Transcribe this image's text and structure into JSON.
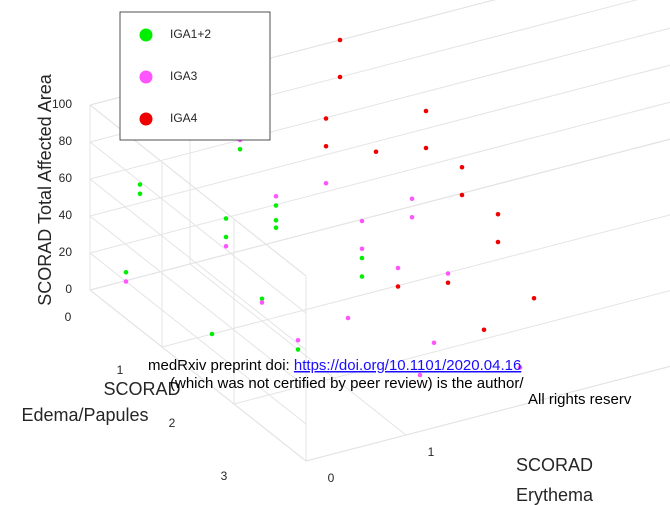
{
  "chart_data": {
    "type": "scatter3d",
    "zlabel": "SCORAD Total Affected Area",
    "ylabel": [
      "SCORAD",
      "Edema/Papules"
    ],
    "xlabel": [
      "SCORAD",
      "Erythema"
    ],
    "xlim": [
      0,
      3
    ],
    "ylim": [
      0,
      3
    ],
    "zlim": [
      0,
      100
    ],
    "xticks": [
      0,
      1
    ],
    "yticks": [
      0,
      1,
      2,
      3
    ],
    "zticks": [
      0,
      20,
      40,
      60,
      80,
      100
    ],
    "grid": true,
    "legend_position": "upper-left",
    "series": [
      {
        "name": "IGA1+2",
        "color": "#00ee00",
        "x": [
          0,
          0.5,
          0.5,
          1,
          1,
          1,
          1.5,
          1.5,
          1.5,
          2,
          2,
          1,
          0.5,
          1.5
        ],
        "y": [
          0.5,
          0,
          0,
          0.5,
          0.5,
          1,
          0.5,
          0.5,
          0.5,
          1,
          1,
          1.5,
          1,
          0
        ],
        "z": [
          25,
          50,
          45,
          40,
          30,
          12,
          40,
          32,
          28,
          20,
          10,
          0,
          0,
          55
        ]
      },
      {
        "name": "IGA3",
        "color": "#ff55ff",
        "x": [
          0,
          1,
          1,
          1.5,
          1.5,
          1.5,
          2,
          2,
          2,
          2,
          1.5,
          2,
          2.5,
          2.5,
          2.5,
          1,
          2.5,
          1.5
        ],
        "y": [
          0.5,
          0.5,
          1,
          0,
          0,
          0.5,
          0.5,
          1,
          1,
          1.5,
          1.5,
          2,
          1,
          1,
          1.5,
          1.5,
          2.5,
          2.5
        ],
        "z": [
          20,
          25,
          10,
          70,
          60,
          45,
          45,
          40,
          25,
          30,
          10,
          5,
          45,
          35,
          20,
          5,
          0,
          10
        ]
      },
      {
        "name": "IGA4",
        "color": "#ee0000",
        "x": [
          2,
          2,
          2.5,
          2.5,
          2.5,
          3,
          3,
          3,
          3,
          3,
          3,
          2.5,
          2,
          2.5,
          3
        ],
        "y": [
          0.5,
          0.5,
          0,
          0,
          0.5,
          0.5,
          0.5,
          1,
          1,
          1.5,
          1.5,
          1.5,
          1.5,
          2,
          2
        ],
        "z": [
          80,
          65,
          100,
          80,
          55,
          70,
          50,
          55,
          40,
          45,
          30,
          15,
          20,
          5,
          15
        ]
      }
    ],
    "annotations": [
      "medRxiv preprint doi: ",
      "https://doi.org/10.1101/2020.04.16",
      "(which was not certified by peer review) is the author/",
      "All rights reserv"
    ]
  }
}
